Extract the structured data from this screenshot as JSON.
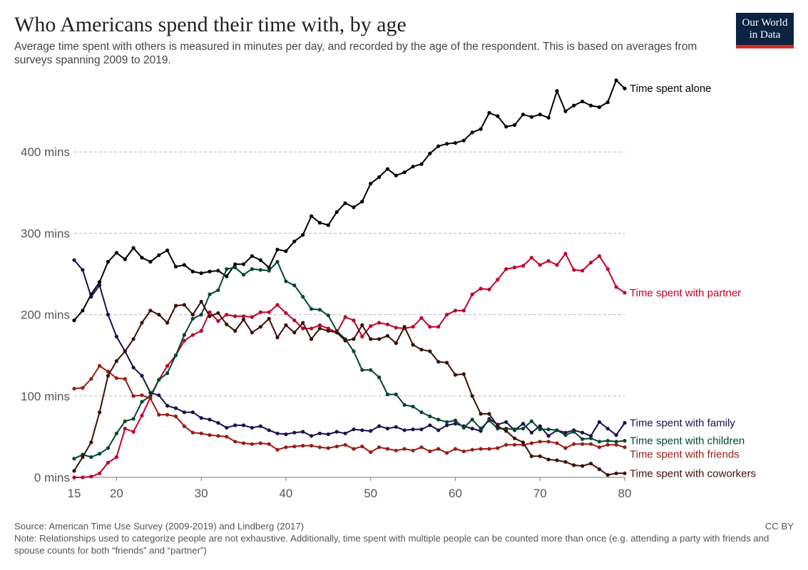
{
  "header": {
    "title": "Who Americans spend their time with, by age",
    "subtitle": "Average time spent with others is measured in minutes per day, and recorded by the age of the respondent. This is based on averages from surveys spanning 2009 to 2019.",
    "logo_line1": "Our World",
    "logo_line2": "in Data"
  },
  "footer": {
    "source": "Source: American Time Use Survey (2009-2019) and Lindberg (2017)",
    "license": "CC BY",
    "note": "Note: Relationships used to categorize people are not exhaustive. Additionally, time spent with multiple people can be counted more than once (e.g. attending a party with friends and spouse counts for both “friends” and “partner”)"
  },
  "chart_data": {
    "type": "line",
    "xlim": [
      15,
      80
    ],
    "ylim": [
      0,
      480
    ],
    "x_ticks": [
      15,
      20,
      30,
      40,
      50,
      60,
      70,
      80
    ],
    "y_ticks": [
      0,
      100,
      200,
      300,
      400
    ],
    "y_tick_labels": [
      "0 mins",
      "100 mins",
      "200 mins",
      "300 mins",
      "400 mins"
    ],
    "grid": "horizontal dashed",
    "legend": "direct labels at line ends",
    "series": [
      {
        "name": "Time spent alone",
        "color": "#000000",
        "x": [
          15,
          16,
          17,
          18,
          19,
          20,
          21,
          22,
          23,
          24,
          25,
          26,
          27,
          28,
          29,
          30,
          31,
          32,
          33,
          34,
          35,
          36,
          37,
          38,
          39,
          40,
          41,
          42,
          43,
          44,
          45,
          46,
          47,
          48,
          49,
          50,
          51,
          52,
          53,
          54,
          55,
          56,
          57,
          58,
          59,
          60,
          61,
          62,
          63,
          64,
          65,
          66,
          67,
          68,
          69,
          70,
          71,
          72,
          73,
          74,
          75,
          76,
          77,
          78,
          79,
          80
        ],
        "y": [
          193,
          205,
          225,
          240,
          265,
          276,
          268,
          282,
          270,
          265,
          273,
          279,
          259,
          261,
          253,
          251,
          253,
          254,
          247,
          262,
          262,
          272,
          267,
          258,
          280,
          278,
          290,
          298,
          321,
          313,
          310,
          326,
          337,
          332,
          339,
          361,
          369,
          379,
          371,
          375,
          382,
          385,
          398,
          407,
          410,
          411,
          414,
          424,
          428,
          448,
          444,
          431,
          433,
          446,
          443,
          446,
          442,
          475,
          450,
          457,
          462,
          457,
          455,
          461,
          488,
          478
        ]
      },
      {
        "name": "Time spent with partner",
        "color": "#c1002a",
        "x": [
          15,
          16,
          17,
          18,
          19,
          20,
          21,
          22,
          23,
          24,
          25,
          26,
          27,
          28,
          29,
          30,
          31,
          32,
          33,
          34,
          35,
          36,
          37,
          38,
          39,
          40,
          41,
          42,
          43,
          44,
          45,
          46,
          47,
          48,
          49,
          50,
          51,
          52,
          53,
          54,
          55,
          56,
          57,
          58,
          59,
          60,
          61,
          62,
          63,
          64,
          65,
          66,
          67,
          68,
          69,
          70,
          71,
          72,
          73,
          74,
          75,
          76,
          77,
          78,
          79,
          80
        ],
        "y": [
          0,
          0,
          1,
          5,
          18,
          25,
          60,
          56,
          76,
          98,
          120,
          137,
          150,
          168,
          175,
          180,
          203,
          192,
          200,
          198,
          198,
          197,
          203,
          203,
          212,
          202,
          193,
          183,
          183,
          187,
          183,
          178,
          197,
          193,
          173,
          186,
          190,
          188,
          184,
          183,
          185,
          196,
          185,
          185,
          200,
          205,
          205,
          225,
          232,
          231,
          243,
          256,
          258,
          260,
          270,
          261,
          266,
          261,
          275,
          255,
          254,
          264,
          272,
          256,
          234,
          227
        ]
      },
      {
        "name": "Time spent with family",
        "color": "#18104c",
        "x": [
          15,
          16,
          17,
          18,
          19,
          20,
          21,
          22,
          23,
          24,
          25,
          26,
          27,
          28,
          29,
          30,
          31,
          32,
          33,
          34,
          35,
          36,
          37,
          38,
          39,
          40,
          41,
          42,
          43,
          44,
          45,
          46,
          47,
          48,
          49,
          50,
          51,
          52,
          53,
          54,
          55,
          56,
          57,
          58,
          59,
          60,
          61,
          62,
          63,
          64,
          65,
          66,
          67,
          68,
          69,
          70,
          71,
          72,
          73,
          74,
          75,
          76,
          77,
          78,
          79,
          80
        ],
        "y": [
          267,
          255,
          222,
          236,
          200,
          173,
          155,
          135,
          125,
          104,
          101,
          88,
          85,
          80,
          80,
          73,
          71,
          67,
          61,
          64,
          64,
          61,
          63,
          58,
          54,
          53,
          55,
          56,
          51,
          54,
          53,
          56,
          54,
          59,
          58,
          57,
          63,
          60,
          62,
          58,
          59,
          59,
          64,
          58,
          64,
          66,
          63,
          60,
          57,
          72,
          65,
          68,
          58,
          66,
          55,
          63,
          51,
          58,
          55,
          58,
          55,
          51,
          68,
          60,
          52,
          67
        ]
      },
      {
        "name": "Time spent with children",
        "color": "#00472d",
        "x": [
          15,
          16,
          17,
          18,
          19,
          20,
          21,
          22,
          23,
          24,
          25,
          26,
          27,
          28,
          29,
          30,
          31,
          32,
          33,
          34,
          35,
          36,
          37,
          38,
          39,
          40,
          41,
          42,
          43,
          44,
          45,
          46,
          47,
          48,
          49,
          50,
          51,
          52,
          53,
          54,
          55,
          56,
          57,
          58,
          59,
          60,
          61,
          62,
          63,
          64,
          65,
          66,
          67,
          68,
          69,
          70,
          71,
          72,
          73,
          74,
          75,
          76,
          77,
          78,
          79,
          80
        ],
        "y": [
          23,
          28,
          25,
          29,
          36,
          54,
          69,
          72,
          93,
          100,
          120,
          128,
          150,
          175,
          195,
          200,
          225,
          230,
          256,
          258,
          249,
          256,
          255,
          254,
          265,
          241,
          236,
          222,
          207,
          206,
          199,
          180,
          170,
          155,
          132,
          132,
          123,
          102,
          102,
          89,
          87,
          80,
          75,
          71,
          68,
          70,
          61,
          71,
          60,
          70,
          60,
          60,
          59,
          60,
          69,
          59,
          59,
          58,
          52,
          56,
          47,
          48,
          44,
          45,
          44,
          45
        ]
      },
      {
        "name": "Time spent with friends",
        "color": "#9a1b14",
        "x": [
          15,
          16,
          17,
          18,
          19,
          20,
          21,
          22,
          23,
          24,
          25,
          26,
          27,
          28,
          29,
          30,
          31,
          32,
          33,
          34,
          35,
          36,
          37,
          38,
          39,
          40,
          41,
          42,
          43,
          44,
          45,
          46,
          47,
          48,
          49,
          50,
          51,
          52,
          53,
          54,
          55,
          56,
          57,
          58,
          59,
          60,
          61,
          62,
          63,
          64,
          65,
          66,
          67,
          68,
          69,
          70,
          71,
          72,
          73,
          74,
          75,
          76,
          77,
          78,
          79,
          80
        ],
        "y": [
          109,
          110,
          121,
          137,
          130,
          122,
          121,
          100,
          101,
          97,
          77,
          77,
          75,
          63,
          55,
          54,
          52,
          51,
          50,
          44,
          42,
          41,
          42,
          41,
          34,
          37,
          38,
          39,
          39,
          37,
          36,
          38,
          40,
          35,
          38,
          31,
          37,
          35,
          33,
          35,
          33,
          37,
          32,
          35,
          30,
          35,
          32,
          34,
          35,
          35,
          36,
          40,
          40,
          40,
          42,
          44,
          44,
          42,
          36,
          41,
          41,
          41,
          37,
          40,
          40,
          37
        ]
      },
      {
        "name": "Time spent with coworkers",
        "color": "#3d0f06",
        "x": [
          15,
          16,
          17,
          18,
          19,
          20,
          21,
          22,
          23,
          24,
          25,
          26,
          27,
          28,
          29,
          30,
          31,
          32,
          33,
          34,
          35,
          36,
          37,
          38,
          39,
          40,
          41,
          42,
          43,
          44,
          45,
          46,
          47,
          48,
          49,
          50,
          51,
          52,
          53,
          54,
          55,
          56,
          57,
          58,
          59,
          60,
          61,
          62,
          63,
          64,
          65,
          66,
          67,
          68,
          69,
          70,
          71,
          72,
          73,
          74,
          75,
          76,
          77,
          78,
          79,
          80
        ],
        "y": [
          8,
          25,
          43,
          80,
          125,
          143,
          155,
          170,
          190,
          205,
          200,
          190,
          211,
          212,
          200,
          216,
          198,
          202,
          188,
          180,
          194,
          178,
          185,
          195,
          172,
          187,
          178,
          190,
          170,
          183,
          180,
          178,
          168,
          170,
          187,
          170,
          170,
          174,
          165,
          185,
          163,
          157,
          155,
          142,
          141,
          126,
          127,
          100,
          78,
          78,
          63,
          57,
          48,
          43,
          26,
          26,
          22,
          21,
          19,
          15,
          14,
          17,
          10,
          3,
          5,
          5
        ]
      }
    ]
  }
}
